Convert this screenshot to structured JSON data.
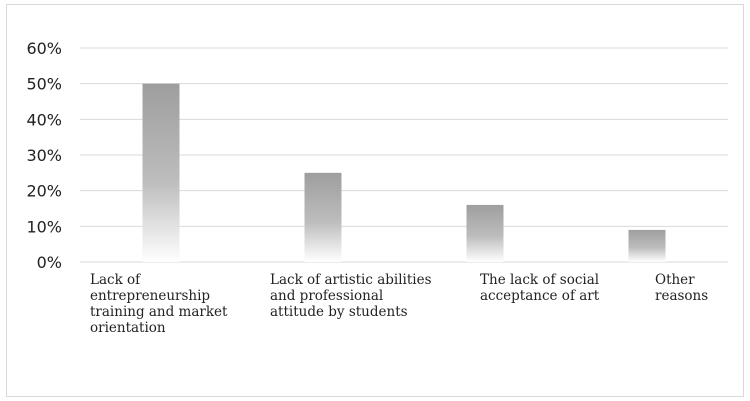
{
  "chart_data": {
    "type": "bar",
    "title": "",
    "xlabel": "",
    "ylabel": "",
    "categories": [
      "Lack of\nentrepreneurship\ntraining and market\norientation",
      "Lack of artistic abilities\nand professional\nattitude by students",
      "The lack of social\nacceptance of art",
      "Other\nreasons"
    ],
    "values": [
      0.5,
      0.25,
      0.16,
      0.09
    ],
    "ylim": [
      0,
      0.6
    ],
    "yticks": [
      "0%",
      "10%",
      "20%",
      "30%",
      "40%",
      "50%",
      "60%"
    ],
    "grid": true,
    "legend": "none",
    "colors": {
      "bar_top": "#9e9e9e",
      "bar_bottom": "#ffffff",
      "grid": "#d9d9d9"
    }
  }
}
